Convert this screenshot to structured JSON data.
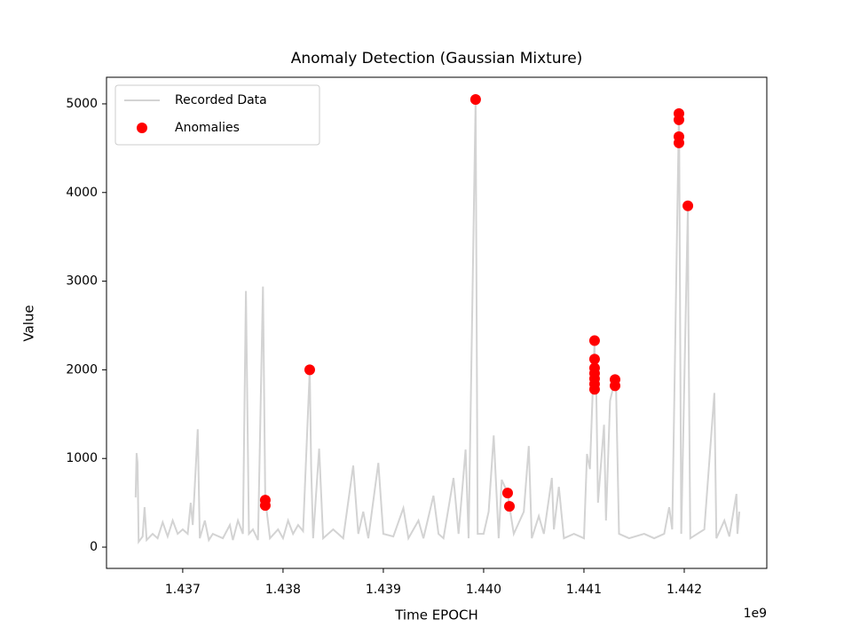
{
  "chart_data": {
    "type": "line",
    "title": "Anomaly Detection (Gaussian Mixture)",
    "xlabel": "Time EPOCH",
    "ylabel": "Value",
    "x_offset_text": "1e9",
    "xlim": [
      1436240000,
      1442823000
    ],
    "ylim": [
      -240,
      5300
    ],
    "xticks": [
      {
        "value": 1437000000,
        "label": "1.437"
      },
      {
        "value": 1438000000,
        "label": "1.438"
      },
      {
        "value": 1439000000,
        "label": "1.439"
      },
      {
        "value": 1440000000,
        "label": "1.440"
      },
      {
        "value": 1441000000,
        "label": "1.441"
      },
      {
        "value": 1442000000,
        "label": "1.442"
      }
    ],
    "yticks": [
      0,
      1000,
      2000,
      3000,
      4000,
      5000
    ],
    "legend": "upper left",
    "series": [
      {
        "name": "Recorded Data",
        "type": "line",
        "color": "#d3d3d3",
        "x": [
          1436530000,
          1436540000,
          1436550000,
          1436560000,
          1436600000,
          1436620000,
          1436640000,
          1436700000,
          1436750000,
          1436800000,
          1436850000,
          1436900000,
          1436950000,
          1437000000,
          1437050000,
          1437080000,
          1437100000,
          1437150000,
          1437170000,
          1437220000,
          1437260000,
          1437300000,
          1437400000,
          1437470000,
          1437500000,
          1437550000,
          1437600000,
          1437630000,
          1437660000,
          1437700000,
          1437750000,
          1437800000,
          1437823000,
          1437830000,
          1437870000,
          1437950000,
          1438000000,
          1438050000,
          1438100000,
          1438150000,
          1438200000,
          1438266000,
          1438280000,
          1438300000,
          1438360000,
          1438400000,
          1438500000,
          1438600000,
          1438700000,
          1438750000,
          1438800000,
          1438850000,
          1438950000,
          1439000000,
          1439100000,
          1439200000,
          1439250000,
          1439350000,
          1439400000,
          1439500000,
          1439550000,
          1439600000,
          1439700000,
          1439750000,
          1439820000,
          1439850000,
          1439920000,
          1439940000,
          1440000000,
          1440050000,
          1440100000,
          1440150000,
          1440180000,
          1440239000,
          1440257000,
          1440300000,
          1440400000,
          1440450000,
          1440480000,
          1440550000,
          1440600000,
          1440680000,
          1440700000,
          1440750000,
          1440800000,
          1440900000,
          1441000000,
          1441030000,
          1441060000,
          1441106000,
          1441110000,
          1441120000,
          1441140000,
          1441200000,
          1441220000,
          1441260000,
          1441310000,
          1441320000,
          1441350000,
          1441450000,
          1441600000,
          1441700000,
          1441800000,
          1441850000,
          1441880000,
          1441947000,
          1441950000,
          1441970000,
          1442036000,
          1442040000,
          1442060000,
          1442200000,
          1442300000,
          1442320000,
          1442400000,
          1442450000,
          1442520000,
          1442530000,
          1442550000
        ],
        "values": [
          560,
          1060,
          950,
          60,
          120,
          450,
          80,
          150,
          100,
          280,
          120,
          300,
          150,
          200,
          150,
          500,
          250,
          1330,
          100,
          300,
          80,
          150,
          100,
          250,
          80,
          300,
          150,
          2890,
          150,
          200,
          80,
          2940,
          530,
          470,
          100,
          200,
          100,
          300,
          150,
          250,
          180,
          2000,
          900,
          100,
          1110,
          100,
          200,
          100,
          920,
          150,
          400,
          100,
          950,
          150,
          120,
          440,
          100,
          300,
          100,
          580,
          150,
          100,
          780,
          150,
          1100,
          100,
          5050,
          150,
          150,
          400,
          1260,
          100,
          760,
          610,
          460,
          150,
          400,
          1140,
          100,
          350,
          150,
          780,
          200,
          680,
          100,
          150,
          100,
          1050,
          880,
          2330,
          1780,
          2000,
          500,
          1380,
          300,
          1650,
          1890,
          1820,
          150,
          100,
          150,
          100,
          150,
          450,
          200,
          4890,
          4560,
          150,
          3850,
          2830,
          100,
          200,
          1740,
          100,
          300,
          120,
          600,
          150,
          400
        ]
      },
      {
        "name": "Anomalies",
        "type": "scatter",
        "color": "#ff0000",
        "x": [
          1437823000,
          1437823000,
          1438266000,
          1439920000,
          1440239000,
          1440257000,
          1441106000,
          1441106000,
          1441106000,
          1441106000,
          1441106000,
          1441106000,
          1441106000,
          1441310000,
          1441310000,
          1441947000,
          1441947000,
          1441947000,
          1441947000,
          1442036000
        ],
        "values": [
          530,
          470,
          2000,
          5050,
          610,
          460,
          2330,
          2120,
          2020,
          1960,
          1900,
          1840,
          1780,
          1890,
          1820,
          4890,
          4820,
          4630,
          4560,
          3850
        ]
      }
    ]
  }
}
